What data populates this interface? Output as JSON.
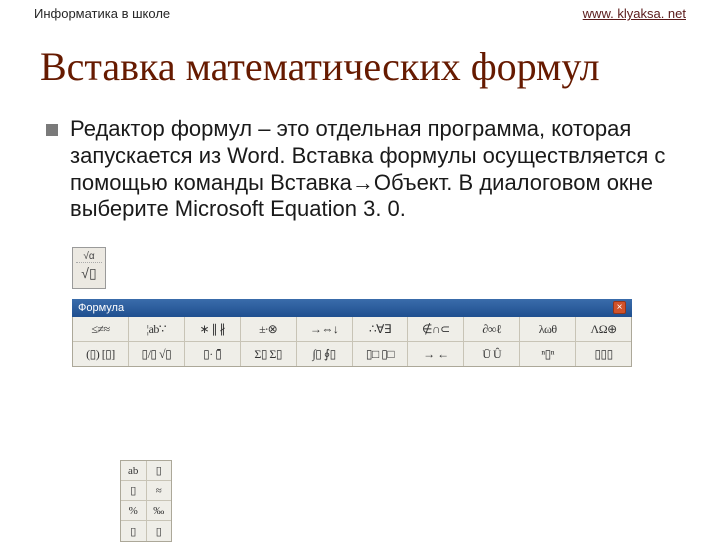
{
  "header": {
    "left": "Информатика в школе",
    "right_text": "www. klyaksa. net",
    "right_href": "#"
  },
  "title": "Вставка математических формул",
  "body": "Редактор формул – это отдельная программа, которая запускается из Word. Вставка формулы осуществляется с помощью команды Вставка→Объект. В диалоговом окне выберите Microsoft Equation 3. 0.",
  "equation_icon": {
    "top": "√α",
    "bottom": "√▯"
  },
  "toolbar": {
    "title": "Формула",
    "row1": [
      "≤≠≈",
      "¦ab∵",
      "∗ ∥ ∦",
      "±∙⊗",
      "→⇔↓",
      "∴∀∃",
      "∉∩⊂",
      "∂∞ℓ",
      "λωθ",
      "ΛΩ⊕"
    ],
    "row2": [
      "(▯) [▯]",
      "▯/▯ √▯",
      "▯·  ▯̄",
      "Σ▯ Σ▯",
      "∫▯ ∮▯",
      "▯□ ▯□",
      "→  ←",
      "Ū  Û",
      "ⁿ▯ⁿ",
      "▯▯▯"
    ]
  },
  "extra_palette": {
    "rows": [
      [
        "ab",
        "▯"
      ],
      [
        "▯",
        "≈"
      ],
      [
        "%",
        "‰"
      ],
      [
        "▯",
        "▯"
      ]
    ]
  },
  "colors": {
    "title": "#661a00",
    "link": "#5a1a1a",
    "toolbar_header": "#1f4f8f",
    "toolbar_bg": "#efeee8",
    "close_btn": "#d0522a"
  }
}
